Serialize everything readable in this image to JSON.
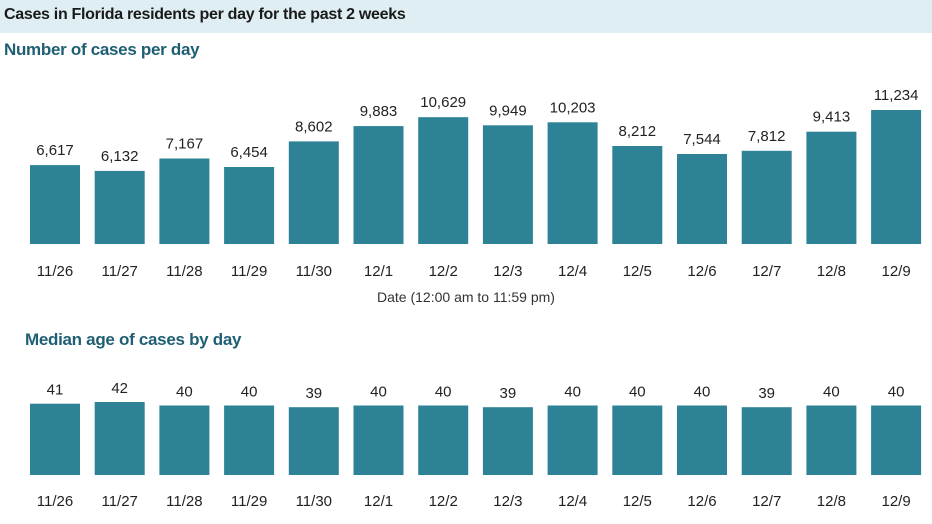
{
  "header": {
    "title": "Cases in Florida residents per day for the past 2 weeks"
  },
  "colors": {
    "bar": "#2e8296",
    "header_band": "#dfeef2",
    "section_title": "#1f5f73"
  },
  "chart_data": [
    {
      "type": "bar",
      "title": "Number of cases per day",
      "xlabel": "Date (12:00 am to 11:59 pm)",
      "ylabel": "",
      "categories": [
        "11/26",
        "11/27",
        "11/28",
        "11/29",
        "11/30",
        "12/1",
        "12/2",
        "12/3",
        "12/4",
        "12/5",
        "12/6",
        "12/7",
        "12/8",
        "12/9"
      ],
      "values": [
        6617,
        6132,
        7167,
        6454,
        8602,
        9883,
        10629,
        9949,
        10203,
        8212,
        7544,
        7812,
        9413,
        11234
      ],
      "data_labels": [
        "6,617",
        "6,132",
        "7,167",
        "6,454",
        "8,602",
        "9,883",
        "10,629",
        "9,949",
        "10,203",
        "8,212",
        "7,544",
        "7,812",
        "9,413",
        "11,234"
      ],
      "ylim": [
        0,
        11234
      ],
      "grid": false
    },
    {
      "type": "bar",
      "title": "Median age of cases by day",
      "xlabel": "",
      "ylabel": "",
      "categories": [
        "11/26",
        "11/27",
        "11/28",
        "11/29",
        "11/30",
        "12/1",
        "12/2",
        "12/3",
        "12/4",
        "12/5",
        "12/6",
        "12/7",
        "12/8",
        "12/9"
      ],
      "values": [
        41,
        42,
        40,
        40,
        39,
        40,
        40,
        39,
        40,
        40,
        40,
        39,
        40,
        40
      ],
      "data_labels": [
        "41",
        "42",
        "40",
        "40",
        "39",
        "40",
        "40",
        "39",
        "40",
        "40",
        "40",
        "39",
        "40",
        "40"
      ],
      "ylim": [
        0,
        42
      ],
      "grid": false
    }
  ]
}
